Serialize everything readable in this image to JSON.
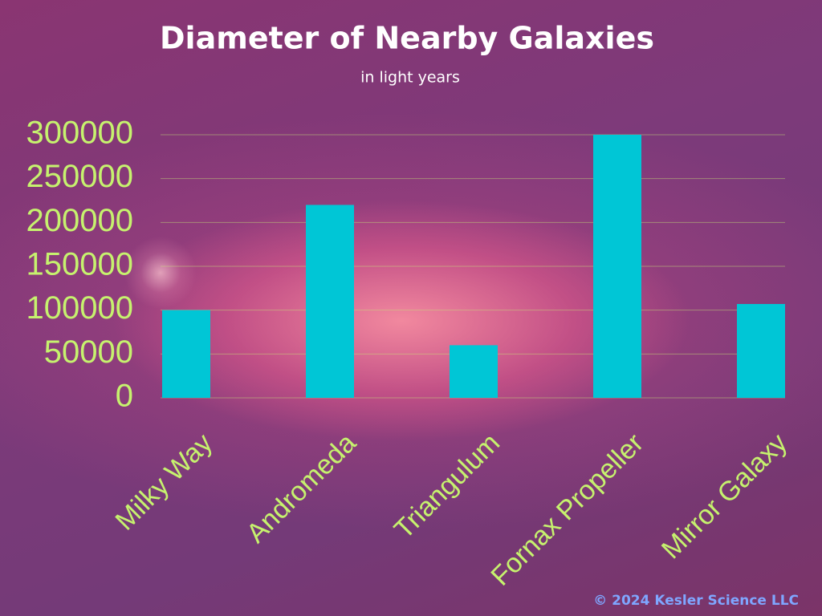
{
  "chart_data": {
    "type": "bar",
    "title": "Diameter of Nearby Galaxies",
    "subtitle": "in light years",
    "categories": [
      "Milky Way",
      "Andromeda",
      "Triangulum",
      "Fornax Propeller",
      "Mirror Galaxy"
    ],
    "values": [
      100000,
      220000,
      60000,
      300000,
      107000
    ],
    "color": "#00c6d6",
    "ylim": [
      0,
      300000
    ],
    "yticks": [
      0,
      50000,
      100000,
      150000,
      200000,
      250000,
      300000
    ],
    "grid": true,
    "annotation": "© 2024 Kesler Science LLC"
  }
}
